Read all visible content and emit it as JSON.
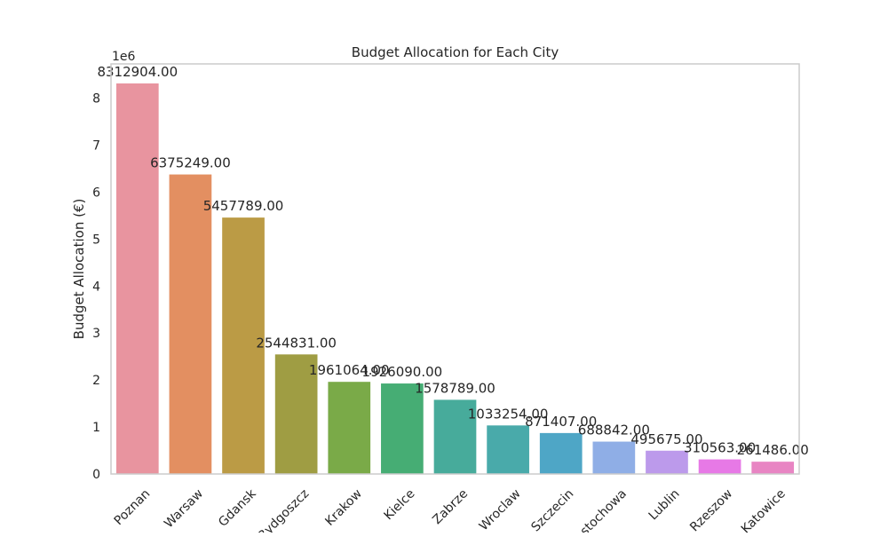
{
  "chart_data": {
    "type": "bar",
    "title": "Budget Allocation for Each City",
    "xlabel": "",
    "ylabel": "Budget Allocation (€)",
    "y_offset_label": "1e6",
    "ylim": [
      0,
      8728549
    ],
    "yticks": [
      0,
      1000000,
      2000000,
      3000000,
      4000000,
      5000000,
      6000000,
      7000000,
      8000000
    ],
    "ytick_labels": [
      "0",
      "1",
      "2",
      "3",
      "4",
      "5",
      "6",
      "7",
      "8"
    ],
    "grid": false,
    "legend": "none",
    "categories": [
      "Poznan",
      "Warsaw",
      "Gdansk",
      "Bydgoszcz",
      "Krakow",
      "Kielce",
      "Zabrze",
      "Wroclaw",
      "Szczecin",
      "Czestochowa",
      "Lublin",
      "Rzeszow",
      "Katowice"
    ],
    "values": [
      8312904.0,
      6375249.0,
      5457789.0,
      2544831.0,
      1961064.0,
      1926090.0,
      1578789.0,
      1033254.0,
      871407.0,
      688842.0,
      495675.0,
      310563.0,
      261486.0
    ],
    "value_labels": [
      "8312904.00",
      "6375249.00",
      "5457789.00",
      "2544831.00",
      "1961064.00",
      "1926090.00",
      "1578789.00",
      "1033254.00",
      "871407.00",
      "688842.00",
      "495675.00",
      "310563.00",
      "261486.00"
    ],
    "colors": [
      "#e8949f",
      "#e38f61",
      "#bb9b45",
      "#9f9d43",
      "#7aaa48",
      "#46ad74",
      "#47ab9b",
      "#49aaaa",
      "#4ea6c6",
      "#8faee6",
      "#bc9aeb",
      "#e779e6",
      "#e885c3"
    ]
  }
}
